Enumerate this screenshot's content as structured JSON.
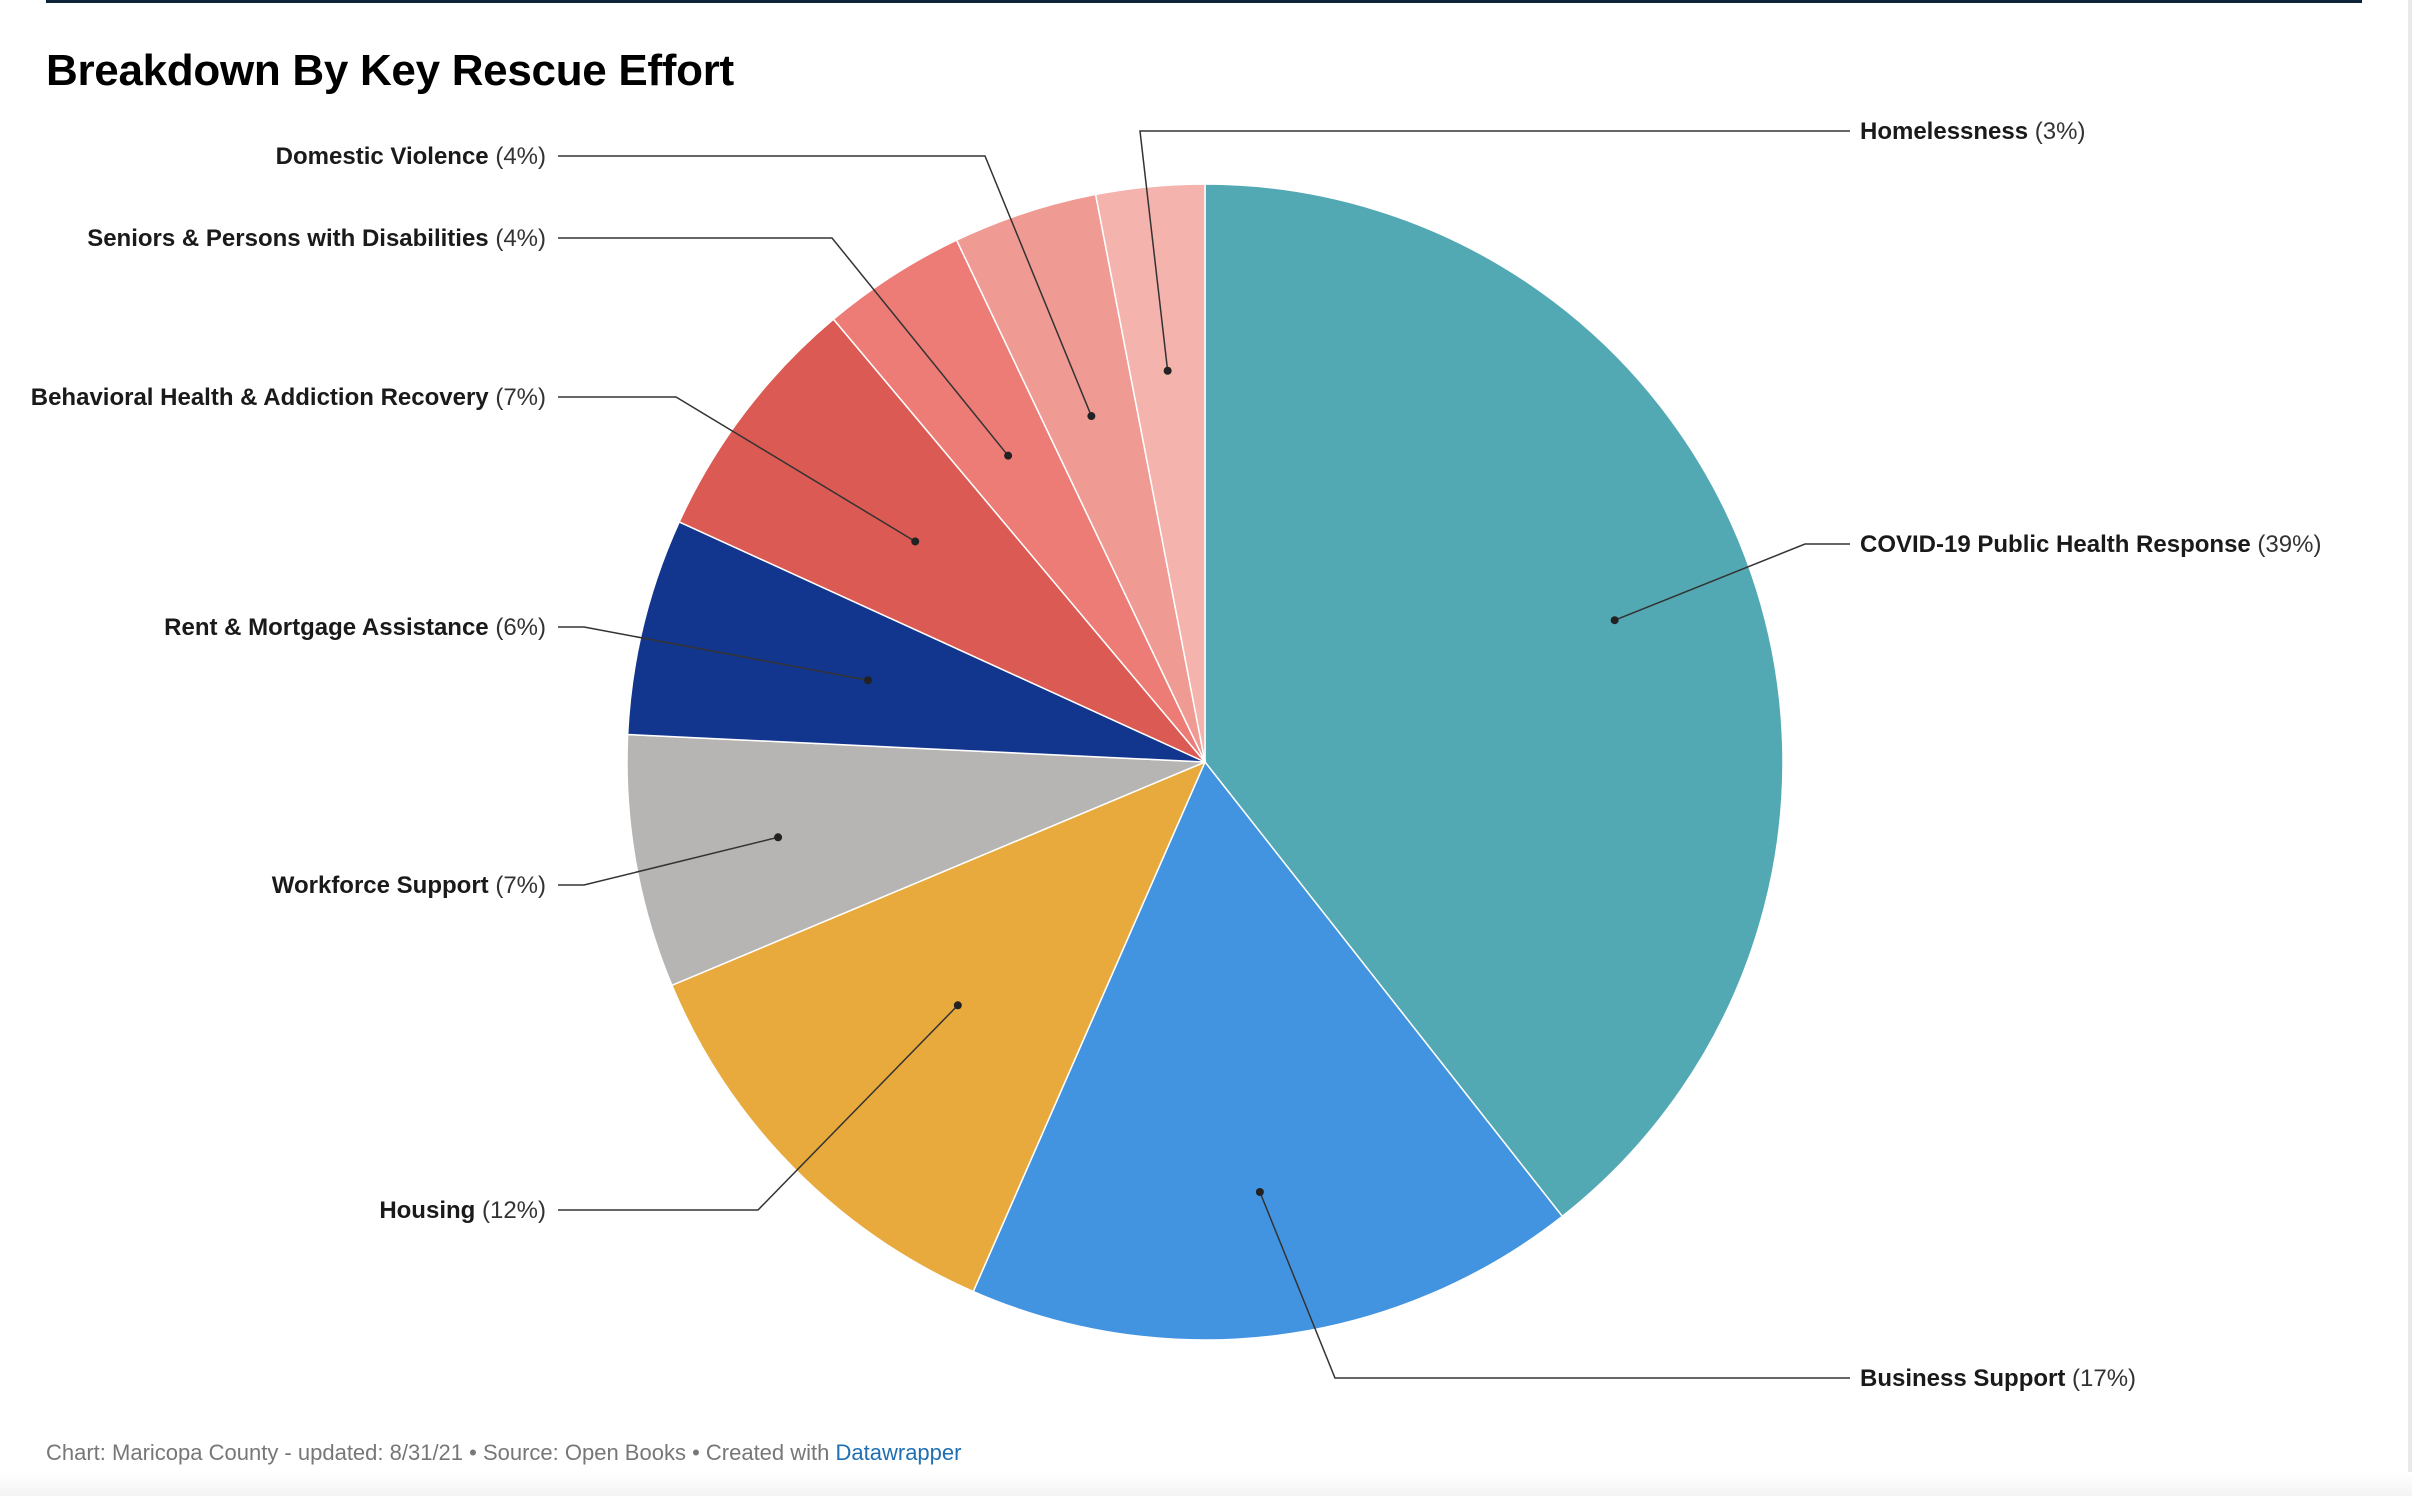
{
  "chart_data": {
    "type": "pie",
    "title": "Breakdown By Key Rescue Effort",
    "start_angle_deg": 0,
    "direction": "clockwise",
    "slices": [
      {
        "name": "COVID-19 Public Health Response",
        "value": 39,
        "label": "(39%)",
        "color": "#52a9b4"
      },
      {
        "name": "Business Support",
        "value": 17,
        "label": "(17%)",
        "color": "#4294e1"
      },
      {
        "name": "Housing",
        "value": 12,
        "label": "(12%)",
        "color": "#e8aa3c"
      },
      {
        "name": "Workforce Support",
        "value": 7,
        "label": "(7%)",
        "color": "#b6b5b3"
      },
      {
        "name": "Rent & Mortgage Assistance",
        "value": 6,
        "label": "(6%)",
        "color": "#12358e"
      },
      {
        "name": "Behavioral Health & Addiction Recovery",
        "value": 7,
        "label": "(7%)",
        "color": "#db5a54"
      },
      {
        "name": "Seniors & Persons with Disabilities",
        "value": 4,
        "label": "(4%)",
        "color": "#ed7b76"
      },
      {
        "name": "Domestic Violence",
        "value": 4,
        "label": "(4%)",
        "color": "#f09a94"
      },
      {
        "name": "Homelessness",
        "value": 3,
        "label": "(3%)",
        "color": "#f4b3ad"
      }
    ]
  },
  "footer": {
    "text": "Chart: Maricopa County - updated: 8/31/21 • Source: Open Books • Created with",
    "link": "Datawrapper"
  }
}
